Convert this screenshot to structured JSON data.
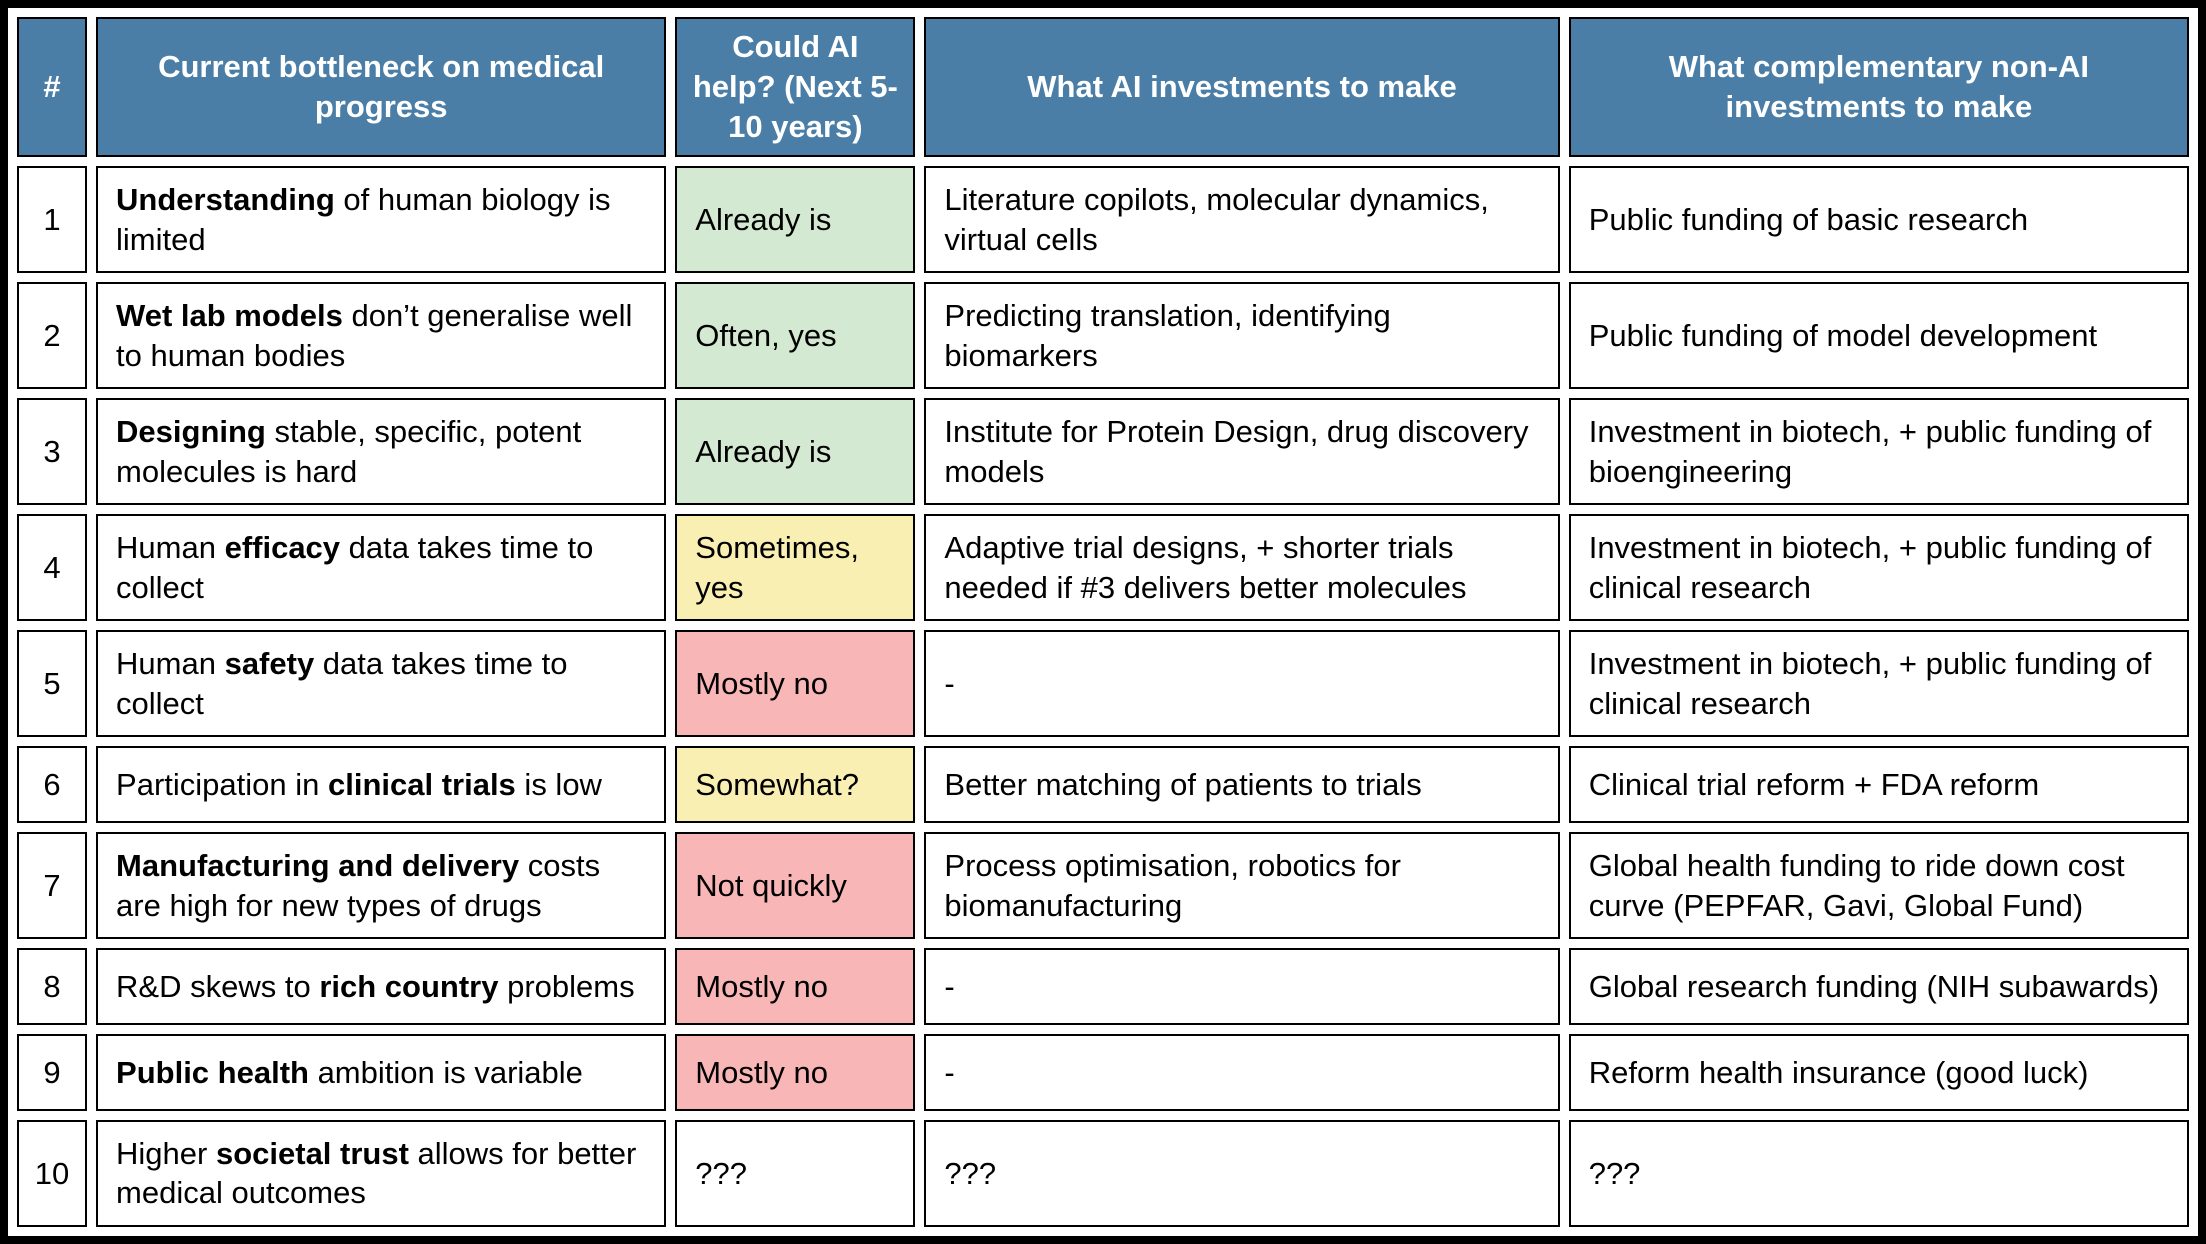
{
  "colors": {
    "header_bg": "#4a7ea6",
    "header_text": "#ffffff",
    "green": "#d4e9d1",
    "yellow": "#f9efb2",
    "red": "#f9b6b6",
    "border": "#000000",
    "text": "#000000"
  },
  "table": {
    "columns": [
      {
        "label": "#"
      },
      {
        "label": "Current bottleneck on medical progress"
      },
      {
        "label": "Could AI help? (Next 5-10 years)"
      },
      {
        "label": "What AI investments to make"
      },
      {
        "label": "What complementary non-AI investments to make"
      }
    ],
    "rows": [
      {
        "num": "1",
        "bottleneck": [
          {
            "t": "Understanding",
            "b": true
          },
          {
            "t": " of human biology is limited",
            "b": false
          }
        ],
        "ai_help": "Already is",
        "ai_help_status": "green",
        "ai_invest": "Literature copilots, molecular dynamics, virtual cells",
        "non_ai_invest": "Public funding of basic research"
      },
      {
        "num": "2",
        "bottleneck": [
          {
            "t": "Wet lab models",
            "b": true
          },
          {
            "t": " don’t generalise well to human bodies",
            "b": false
          }
        ],
        "ai_help": "Often, yes",
        "ai_help_status": "green",
        "ai_invest": "Predicting translation, identifying biomarkers",
        "non_ai_invest": "Public funding of model development"
      },
      {
        "num": "3",
        "bottleneck": [
          {
            "t": "Designing",
            "b": true
          },
          {
            "t": " stable, specific, potent molecules is hard",
            "b": false
          }
        ],
        "ai_help": "Already is",
        "ai_help_status": "green",
        "ai_invest": "Institute for Protein Design, drug discovery models",
        "non_ai_invest": "Investment in biotech, + public funding of bioengineering"
      },
      {
        "num": "4",
        "bottleneck": [
          {
            "t": "Human ",
            "b": false
          },
          {
            "t": "efficacy",
            "b": true
          },
          {
            "t": " data takes time to collect",
            "b": false
          }
        ],
        "ai_help": "Sometimes, yes",
        "ai_help_status": "yellow",
        "ai_invest": "Adaptive trial designs, + shorter trials needed if #3 delivers better molecules",
        "non_ai_invest": "Investment in biotech, + public funding of clinical research"
      },
      {
        "num": "5",
        "bottleneck": [
          {
            "t": "Human ",
            "b": false
          },
          {
            "t": "safety",
            "b": true
          },
          {
            "t": " data takes time to collect",
            "b": false
          }
        ],
        "ai_help": "Mostly no",
        "ai_help_status": "red",
        "ai_invest": "-",
        "non_ai_invest": "Investment in biotech, + public funding of clinical research"
      },
      {
        "num": "6",
        "bottleneck": [
          {
            "t": "Participation in ",
            "b": false
          },
          {
            "t": "clinical trials",
            "b": true
          },
          {
            "t": " is low",
            "b": false
          }
        ],
        "ai_help": "Somewhat?",
        "ai_help_status": "yellow",
        "ai_invest": "Better matching of patients to trials",
        "non_ai_invest": "Clinical trial reform + FDA reform"
      },
      {
        "num": "7",
        "bottleneck": [
          {
            "t": "Manufacturing and delivery",
            "b": true
          },
          {
            "t": " costs are high for new types of drugs",
            "b": false
          }
        ],
        "ai_help": "Not quickly",
        "ai_help_status": "red",
        "ai_invest": "Process optimisation, robotics for biomanufacturing",
        "non_ai_invest": "Global health funding to ride down cost curve (PEPFAR, Gavi, Global Fund)"
      },
      {
        "num": "8",
        "bottleneck": [
          {
            "t": "R&D skews to ",
            "b": false
          },
          {
            "t": "rich country",
            "b": true
          },
          {
            "t": " problems",
            "b": false
          }
        ],
        "ai_help": "Mostly no",
        "ai_help_status": "red",
        "ai_invest": "-",
        "non_ai_invest": "Global research funding (NIH subawards)"
      },
      {
        "num": "9",
        "bottleneck": [
          {
            "t": "Public health",
            "b": true
          },
          {
            "t": " ambition is variable",
            "b": false
          }
        ],
        "ai_help": "Mostly no",
        "ai_help_status": "red",
        "ai_invest": "-",
        "non_ai_invest": "Reform health insurance (good luck)"
      },
      {
        "num": "10",
        "bottleneck": [
          {
            "t": "Higher ",
            "b": false
          },
          {
            "t": "societal trust",
            "b": true
          },
          {
            "t": " allows for better medical outcomes",
            "b": false
          }
        ],
        "ai_help": "???",
        "ai_help_status": "none",
        "ai_invest": "???",
        "non_ai_invest": "???"
      }
    ]
  }
}
